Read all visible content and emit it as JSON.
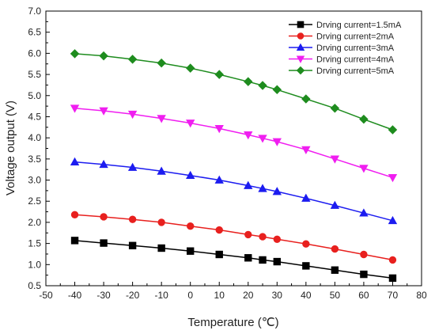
{
  "chart_data": {
    "type": "line",
    "xlabel": "Temperature (℃)",
    "ylabel": "Voltage output (V)",
    "xlim": [
      -50,
      80
    ],
    "ylim": [
      0.5,
      7.0
    ],
    "xticks": [
      -50,
      -40,
      -30,
      -20,
      -10,
      0,
      10,
      20,
      30,
      40,
      50,
      60,
      70,
      80
    ],
    "yticks": [
      0.5,
      1.0,
      1.5,
      2.0,
      2.5,
      3.0,
      3.5,
      4.0,
      4.5,
      5.0,
      5.5,
      6.0,
      6.5,
      7.0
    ],
    "grid": false,
    "legend_position": "top-right",
    "x": [
      -40,
      -30,
      -20,
      -10,
      0,
      10,
      20,
      25,
      30,
      40,
      50,
      60,
      70
    ],
    "series": [
      {
        "name": "Drving current=1.5mA",
        "color": "#000000",
        "marker": "square",
        "values": [
          1.57,
          1.51,
          1.45,
          1.39,
          1.32,
          1.24,
          1.16,
          1.11,
          1.07,
          0.97,
          0.87,
          0.77,
          0.68
        ]
      },
      {
        "name": "Drving current=2mA",
        "color": "#e8201e",
        "marker": "circle",
        "values": [
          2.18,
          2.13,
          2.07,
          2.0,
          1.91,
          1.82,
          1.71,
          1.66,
          1.6,
          1.49,
          1.37,
          1.24,
          1.11
        ]
      },
      {
        "name": "Drving current=3mA",
        "color": "#1c1cf0",
        "marker": "triangle-up",
        "values": [
          3.43,
          3.37,
          3.3,
          3.21,
          3.11,
          3.0,
          2.87,
          2.8,
          2.73,
          2.57,
          2.4,
          2.22,
          2.04
        ]
      },
      {
        "name": "Drving current=4mA",
        "color": "#f01ef0",
        "marker": "triangle-down",
        "values": [
          4.7,
          4.64,
          4.56,
          4.46,
          4.35,
          4.22,
          4.07,
          3.99,
          3.91,
          3.72,
          3.5,
          3.28,
          3.06
        ]
      },
      {
        "name": "Drving current=5mA",
        "color": "#1e8c1e",
        "marker": "diamond",
        "values": [
          5.99,
          5.94,
          5.86,
          5.77,
          5.65,
          5.5,
          5.33,
          5.24,
          5.14,
          4.92,
          4.7,
          4.44,
          4.19
        ]
      }
    ]
  }
}
